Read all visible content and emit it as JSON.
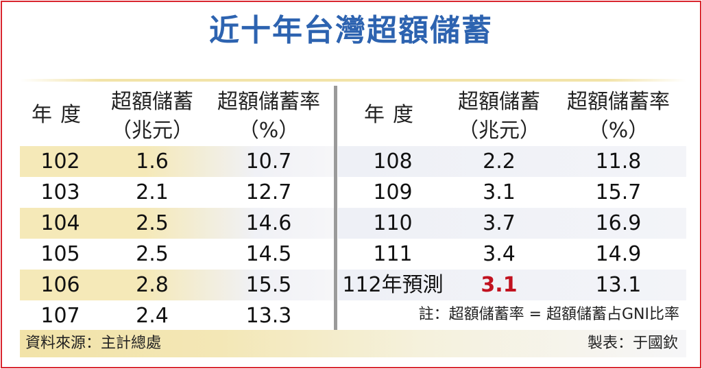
{
  "title": "近十年台灣超額儲蓄",
  "headers": {
    "year": "年度",
    "excess_l1": "超額儲蓄",
    "excess_l2": "（兆元）",
    "rate_l1": "超額儲蓄率",
    "rate_l2": "（%）"
  },
  "left_rows": [
    {
      "year": "102",
      "excess": "1.6",
      "rate": "10.7"
    },
    {
      "year": "103",
      "excess": "2.1",
      "rate": "12.7"
    },
    {
      "year": "104",
      "excess": "2.5",
      "rate": "14.6"
    },
    {
      "year": "105",
      "excess": "2.5",
      "rate": "14.5"
    },
    {
      "year": "106",
      "excess": "2.8",
      "rate": "15.5"
    },
    {
      "year": "107",
      "excess": "2.4",
      "rate": "13.3"
    }
  ],
  "right_rows": [
    {
      "year": "108",
      "excess": "2.2",
      "rate": "11.8"
    },
    {
      "year": "109",
      "excess": "3.1",
      "rate": "15.7"
    },
    {
      "year": "110",
      "excess": "3.7",
      "rate": "16.9"
    },
    {
      "year": "111",
      "excess": "3.4",
      "rate": "14.9"
    },
    {
      "year": "112年預測",
      "excess": "3.1",
      "rate": "13.1",
      "highlight_color": "#c1121f"
    }
  ],
  "note": "註：超額儲蓄率 = 超額儲蓄占GNI比率",
  "source": "資料來源：主計總處",
  "credit": "製表：于國欽",
  "colors": {
    "title": "#2d63b0",
    "border": "#d9262e",
    "band": "#f5e9b8",
    "highlight": "#c1121f"
  }
}
